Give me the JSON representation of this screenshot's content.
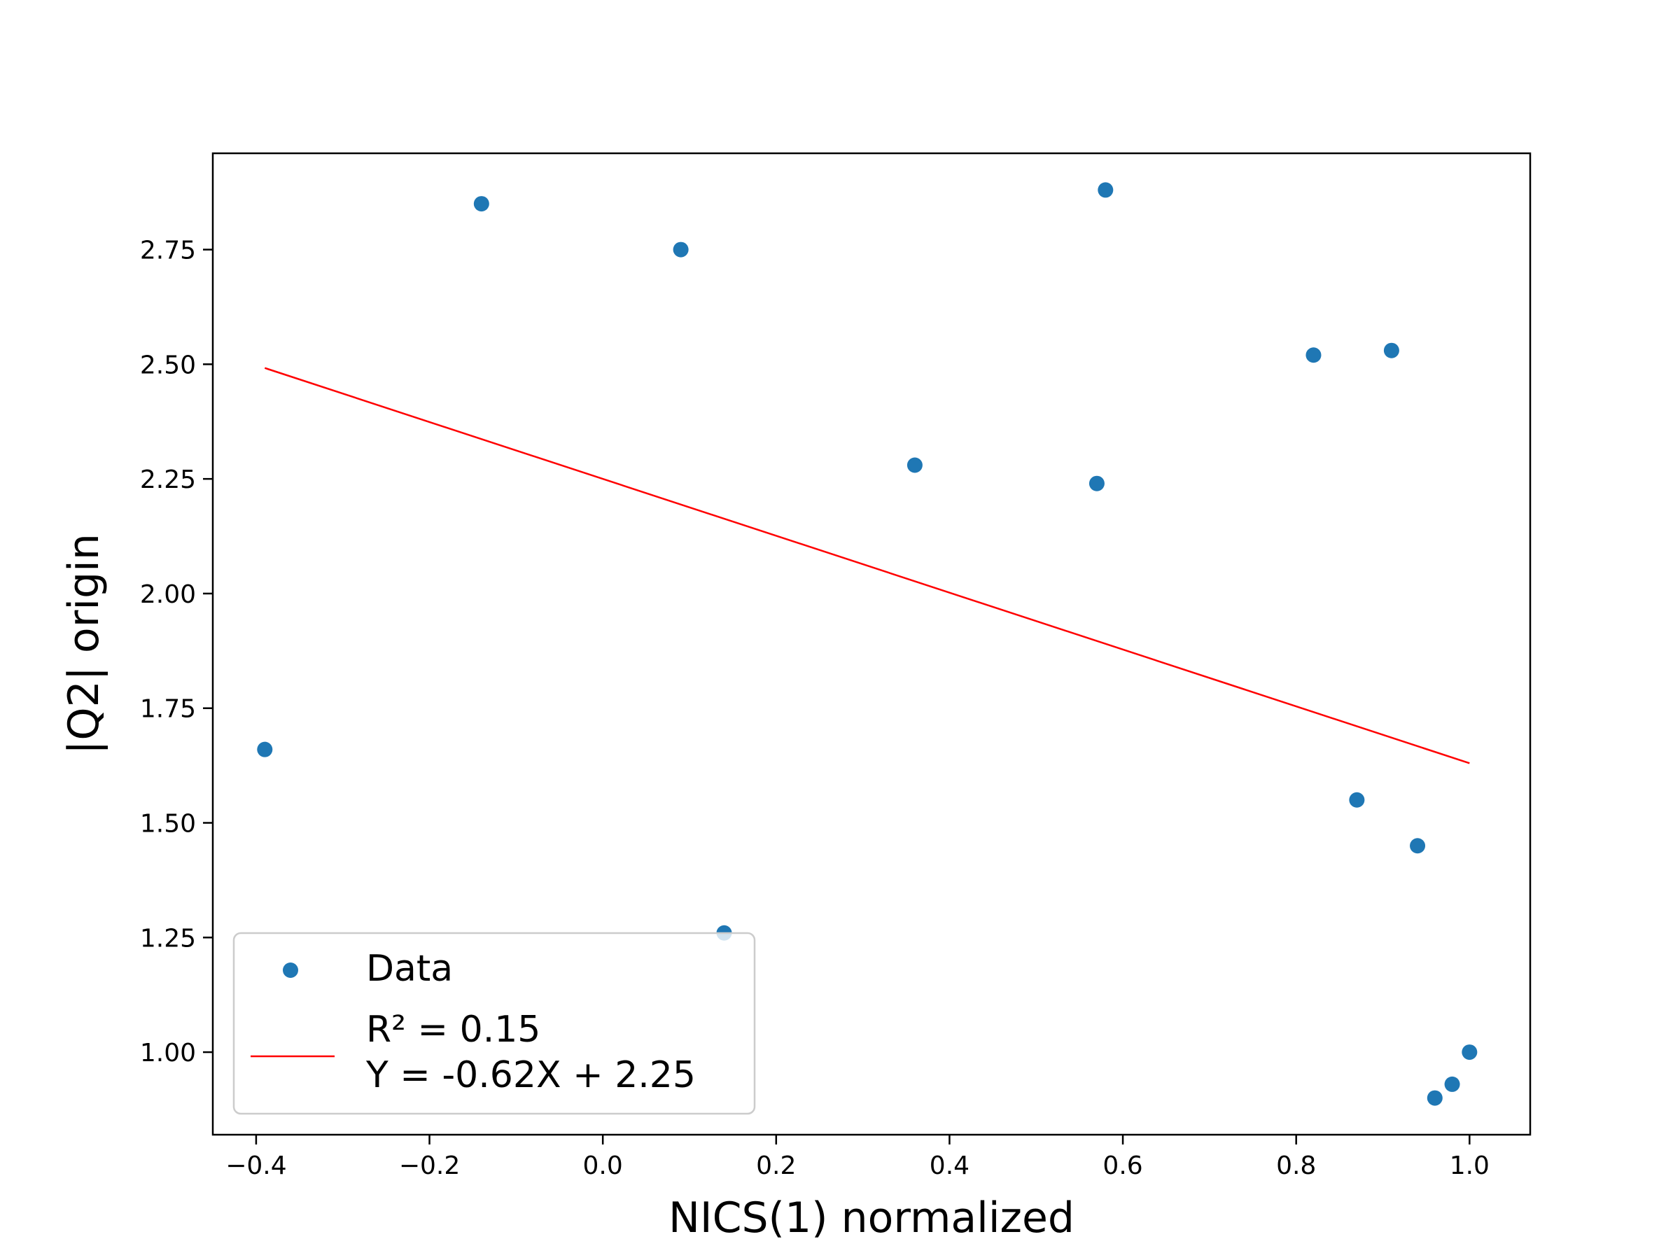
{
  "chart_data": {
    "type": "scatter",
    "xlabel": "NICS(1) normalized",
    "ylabel": "|Q2| origin",
    "xlim": [
      -0.45,
      1.07
    ],
    "ylim": [
      0.82,
      2.96
    ],
    "x_ticks": [
      -0.4,
      -0.2,
      0.0,
      0.2,
      0.4,
      0.6,
      0.8,
      1.0
    ],
    "x_tick_labels": [
      "−0.4",
      "−0.2",
      "0.0",
      "0.2",
      "0.4",
      "0.6",
      "0.8",
      "1.0"
    ],
    "y_ticks": [
      1.0,
      1.25,
      1.5,
      1.75,
      2.0,
      2.25,
      2.5,
      2.75
    ],
    "y_tick_labels": [
      "1.00",
      "1.25",
      "1.50",
      "1.75",
      "2.00",
      "2.25",
      "2.50",
      "2.75"
    ],
    "grid": false,
    "legend_position": "lower-left",
    "series": [
      {
        "name": "Data",
        "color": "#1f77b4",
        "points": [
          {
            "x": -0.39,
            "y": 1.66
          },
          {
            "x": -0.14,
            "y": 2.85
          },
          {
            "x": 0.09,
            "y": 2.75
          },
          {
            "x": 0.14,
            "y": 1.26
          },
          {
            "x": 0.36,
            "y": 2.28
          },
          {
            "x": 0.57,
            "y": 2.24
          },
          {
            "x": 0.58,
            "y": 2.88
          },
          {
            "x": 0.82,
            "y": 2.52
          },
          {
            "x": 0.87,
            "y": 1.55
          },
          {
            "x": 0.91,
            "y": 2.53
          },
          {
            "x": 0.94,
            "y": 1.45
          },
          {
            "x": 0.96,
            "y": 0.9
          },
          {
            "x": 0.98,
            "y": 0.93
          },
          {
            "x": 1.0,
            "y": 1.0
          }
        ]
      }
    ],
    "fit": {
      "color": "#ff0000",
      "legend_line1": "R² = 0.15",
      "legend_line2": "Y = -0.62X + 2.25",
      "slope": -0.62,
      "intercept": 2.25,
      "x_range": [
        -0.39,
        1.0
      ]
    }
  }
}
